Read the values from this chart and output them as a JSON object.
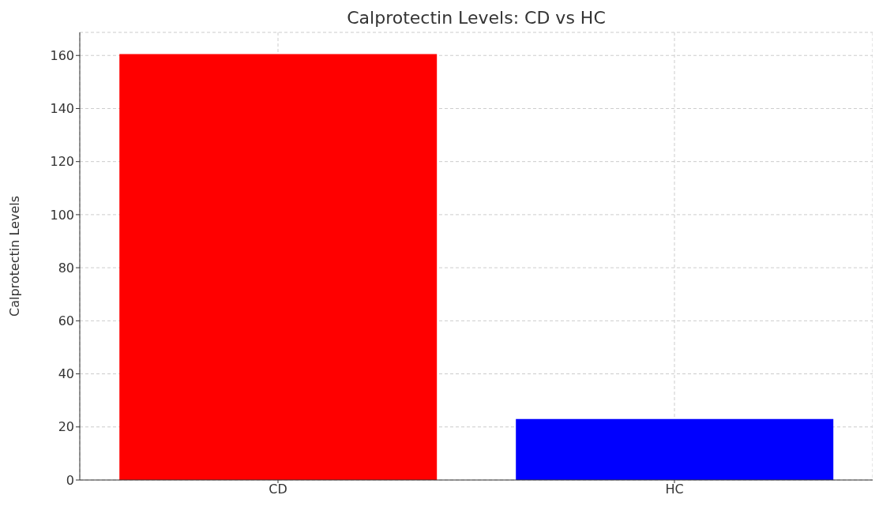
{
  "chart_data": {
    "type": "bar",
    "title": "Calprotectin Levels: CD vs HC",
    "ylabel": "Calprotectin Levels",
    "categories": [
      "CD",
      "HC"
    ],
    "values": [
      160.5,
      23
    ],
    "colors": [
      "#ff0000",
      "#0000ff"
    ],
    "ylim": [
      0,
      168.7
    ],
    "yticks": [
      0,
      20,
      40,
      60,
      80,
      100,
      120,
      140,
      160
    ],
    "grid": true
  }
}
